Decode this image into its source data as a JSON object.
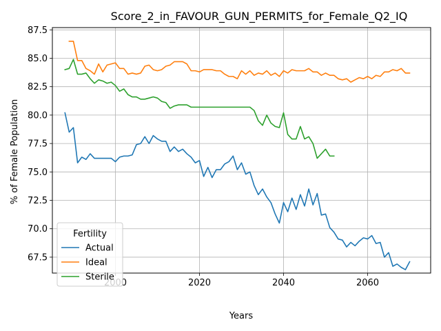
{
  "chart_data": {
    "type": "line",
    "title": "Score_2_in_FAVOUR_GUN_PERMITS_for_Female_Q2_IQ",
    "xlabel": "Years",
    "ylabel": "% of Female Population",
    "xlim": [
      1985,
      2075
    ],
    "ylim": [
      66.1,
      87.7
    ],
    "x_ticks": [
      2000,
      2020,
      2040,
      2060
    ],
    "y_ticks": [
      67.5,
      70.0,
      72.5,
      75.0,
      77.5,
      80.0,
      82.5,
      85.0,
      87.5
    ],
    "grid": true,
    "legend": {
      "title": "Fertility",
      "placement": "lower-left"
    },
    "colors": {
      "Actual": "#1f77b4",
      "Ideal": "#ff7f0e",
      "Sterile": "#2ca02c"
    },
    "series": [
      {
        "name": "Actual",
        "x": [
          1988,
          1989,
          1990,
          1991,
          1992,
          1993,
          1994,
          1995,
          1996,
          1997,
          1998,
          1999,
          2000,
          2001,
          2002,
          2003,
          2004,
          2005,
          2006,
          2007,
          2008,
          2009,
          2010,
          2011,
          2012,
          2013,
          2014,
          2015,
          2016,
          2017,
          2018,
          2019,
          2020,
          2021,
          2022,
          2023,
          2024,
          2025,
          2026,
          2027,
          2028,
          2029,
          2030,
          2031,
          2032,
          2033,
          2034,
          2035,
          2036,
          2037,
          2038,
          2039,
          2040,
          2041,
          2042,
          2043,
          2044,
          2045,
          2046,
          2047,
          2048,
          2049,
          2050,
          2051,
          2052,
          2053,
          2054,
          2055,
          2056,
          2057,
          2058,
          2059,
          2060,
          2061,
          2062,
          2063,
          2064,
          2065,
          2066,
          2067,
          2068,
          2069,
          2070
        ],
        "values": [
          80.2,
          78.5,
          78.9,
          75.8,
          76.3,
          76.1,
          76.6,
          76.2,
          76.2,
          76.2,
          76.2,
          76.2,
          75.9,
          76.3,
          76.4,
          76.4,
          76.5,
          77.4,
          77.5,
          78.1,
          77.5,
          78.2,
          77.9,
          77.7,
          77.7,
          76.8,
          77.2,
          76.8,
          77.0,
          76.6,
          76.3,
          75.8,
          76.0,
          74.6,
          75.4,
          74.5,
          75.2,
          75.2,
          75.7,
          75.9,
          76.4,
          75.2,
          75.8,
          74.8,
          75.0,
          73.8,
          73.0,
          73.5,
          72.8,
          72.3,
          71.3,
          70.5,
          72.3,
          71.5,
          72.7,
          71.7,
          73.0,
          72.0,
          73.5,
          72.1,
          73.1,
          71.2,
          71.3,
          70.1,
          69.7,
          69.1,
          69.0,
          68.4,
          68.8,
          68.5,
          68.9,
          69.2,
          69.1,
          69.4,
          68.7,
          68.8,
          67.5,
          67.9,
          66.7,
          66.9,
          66.6,
          66.4,
          67.1
        ]
      },
      {
        "name": "Ideal",
        "x": [
          1988,
          1989,
          1990,
          1991,
          1992,
          1993,
          1994,
          1995,
          1996,
          1997,
          1998,
          1999,
          2000,
          2001,
          2002,
          2003,
          2004,
          2005,
          2006,
          2007,
          2008,
          2009,
          2010,
          2011,
          2012,
          2013,
          2014,
          2015,
          2016,
          2017,
          2018,
          2019,
          2020,
          2021,
          2022,
          2023,
          2024,
          2025,
          2026,
          2027,
          2028,
          2029,
          2030,
          2031,
          2032,
          2033,
          2034,
          2035,
          2036,
          2037,
          2038,
          2039,
          2040,
          2041,
          2042,
          2043,
          2044,
          2045,
          2046,
          2047,
          2048,
          2049,
          2050,
          2051,
          2052,
          2053,
          2054,
          2055,
          2056,
          2057,
          2058,
          2059,
          2060,
          2061,
          2062,
          2063,
          2064,
          2065,
          2066,
          2067,
          2068,
          2069,
          2070
        ],
        "values": [
          null,
          86.5,
          86.5,
          84.8,
          84.8,
          84.1,
          83.9,
          83.6,
          84.5,
          83.8,
          84.4,
          84.5,
          84.6,
          84.1,
          84.1,
          83.6,
          83.7,
          83.6,
          83.7,
          84.3,
          84.4,
          84.0,
          83.9,
          84.0,
          84.3,
          84.4,
          84.7,
          84.7,
          84.7,
          84.5,
          83.9,
          83.9,
          83.8,
          84.0,
          84.0,
          84.0,
          83.9,
          83.9,
          83.6,
          83.4,
          83.4,
          83.2,
          83.9,
          83.6,
          83.9,
          83.5,
          83.7,
          83.6,
          83.9,
          83.5,
          83.7,
          83.4,
          83.9,
          83.7,
          84.0,
          83.9,
          83.9,
          83.9,
          84.1,
          83.8,
          83.8,
          83.5,
          83.7,
          83.5,
          83.5,
          83.2,
          83.1,
          83.2,
          82.9,
          83.1,
          83.3,
          83.2,
          83.4,
          83.2,
          83.5,
          83.4,
          83.8,
          83.8,
          84.0,
          83.9,
          84.1,
          83.7,
          83.7
        ]
      },
      {
        "name": "Sterile",
        "x": [
          1988,
          1989,
          1990,
          1991,
          1992,
          1993,
          1994,
          1995,
          1996,
          1997,
          1998,
          1999,
          2000,
          2001,
          2002,
          2003,
          2004,
          2005,
          2006,
          2007,
          2008,
          2009,
          2010,
          2011,
          2012,
          2013,
          2014,
          2015,
          2016,
          2017,
          2018,
          2019,
          2020,
          2021,
          2022,
          2023,
          2024,
          2025,
          2026,
          2027,
          2028,
          2029,
          2030,
          2031,
          2032,
          2033,
          2034,
          2035,
          2036,
          2037,
          2038,
          2039,
          2040,
          2041,
          2042,
          2043,
          2044,
          2045,
          2046,
          2047,
          2048,
          2049,
          2050,
          2051,
          2052
        ],
        "values": [
          84.0,
          84.1,
          84.9,
          83.6,
          83.6,
          83.7,
          83.2,
          82.8,
          83.1,
          83.0,
          82.8,
          82.9,
          82.6,
          82.1,
          82.3,
          81.8,
          81.6,
          81.6,
          81.4,
          81.4,
          81.5,
          81.6,
          81.5,
          81.2,
          81.1,
          80.6,
          80.8,
          80.9,
          80.9,
          80.9,
          80.7,
          80.7,
          80.7,
          80.7,
          80.7,
          80.7,
          80.7,
          80.7,
          80.7,
          80.7,
          80.7,
          80.7,
          80.7,
          80.7,
          80.7,
          80.4,
          79.5,
          79.1,
          80.0,
          79.3,
          79.0,
          78.9,
          80.2,
          78.3,
          77.9,
          77.9,
          79.0,
          77.9,
          78.1,
          77.5,
          76.2,
          76.6,
          77.0,
          76.4,
          76.4
        ]
      }
    ]
  }
}
